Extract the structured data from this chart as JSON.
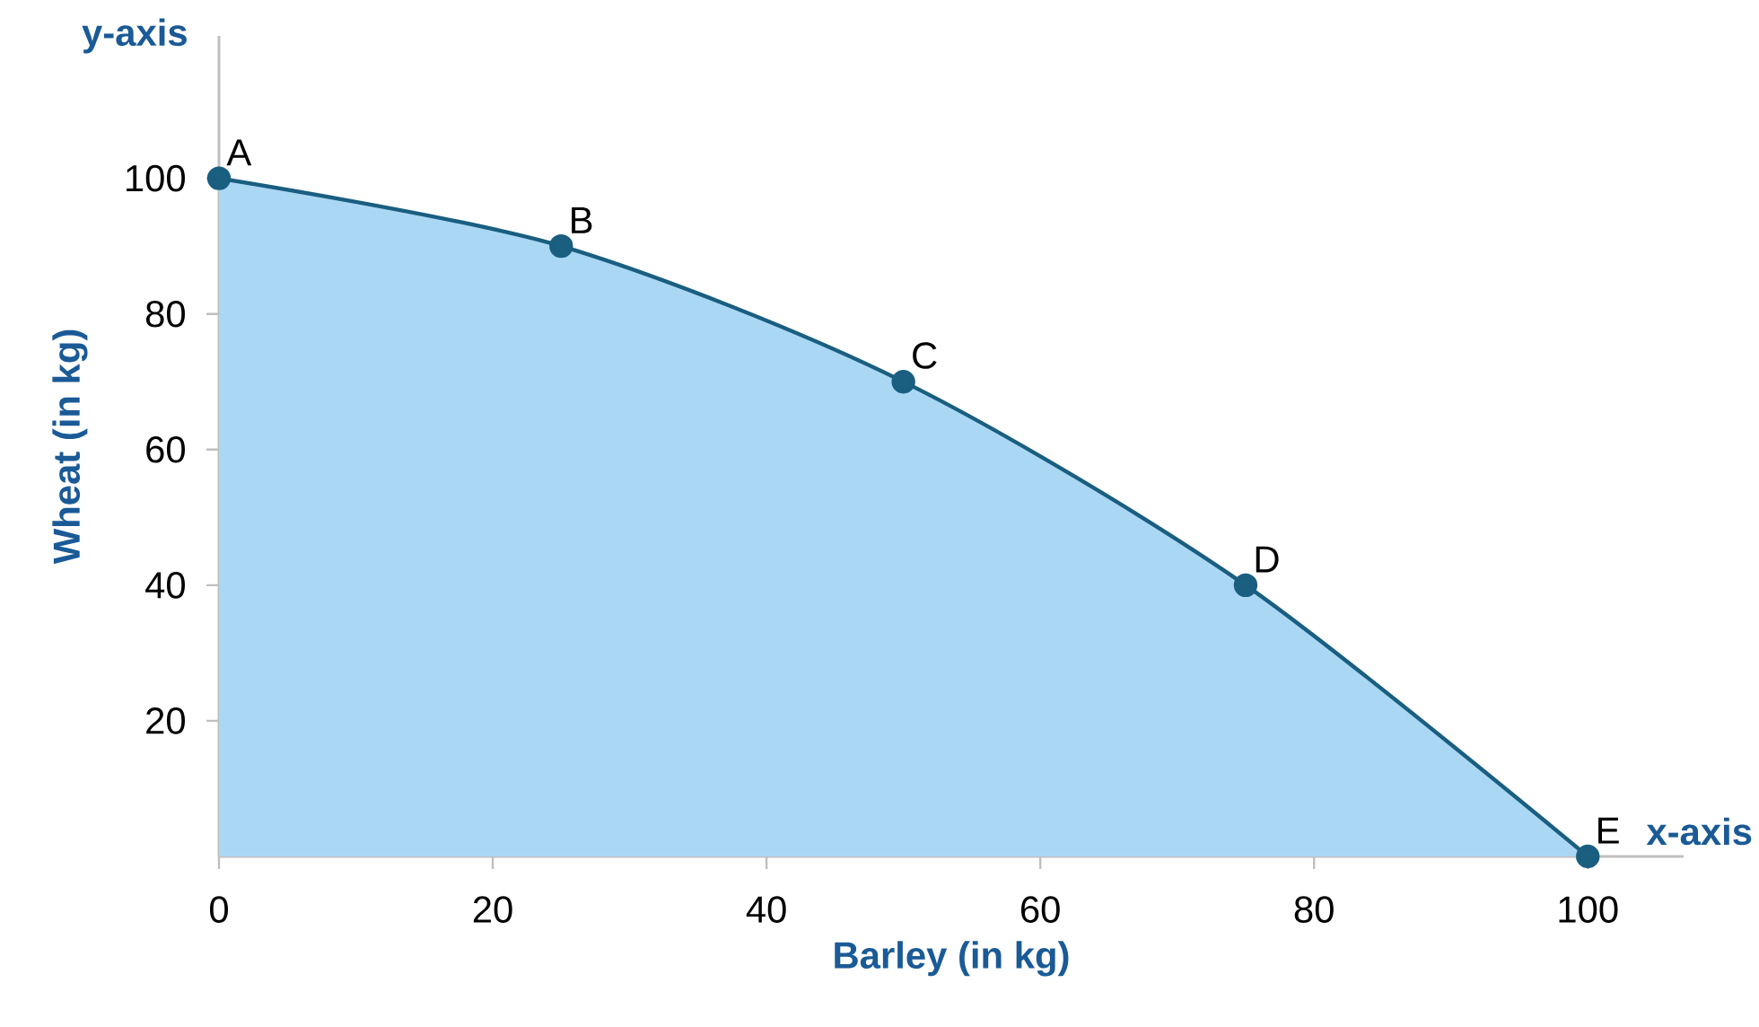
{
  "chart_data": {
    "type": "area",
    "xlabel": "Barley (in kg)",
    "ylabel": "Wheat (in kg)",
    "x": [
      0,
      25,
      50,
      75,
      100
    ],
    "series": [
      {
        "color": "#aad8f4",
        "values": [
          100,
          90,
          70,
          40,
          0
        ]
      }
    ],
    "xlim": [
      0,
      107
    ],
    "ylim": [
      0,
      121
    ],
    "xticks": [
      0,
      20,
      40,
      60,
      80,
      100
    ],
    "yticks": [
      20,
      40,
      60,
      80,
      100
    ],
    "marker": "circle",
    "annotations": [
      "y-axis",
      "x-axis",
      {
        "text": "A",
        "x": 0,
        "y": 100
      },
      {
        "text": "B",
        "x": 25,
        "y": 90
      },
      {
        "text": "C",
        "x": 50,
        "y": 70
      },
      {
        "text": "D",
        "x": 75,
        "y": 40
      },
      {
        "text": "E",
        "x": 100,
        "y": 0
      }
    ]
  }
}
